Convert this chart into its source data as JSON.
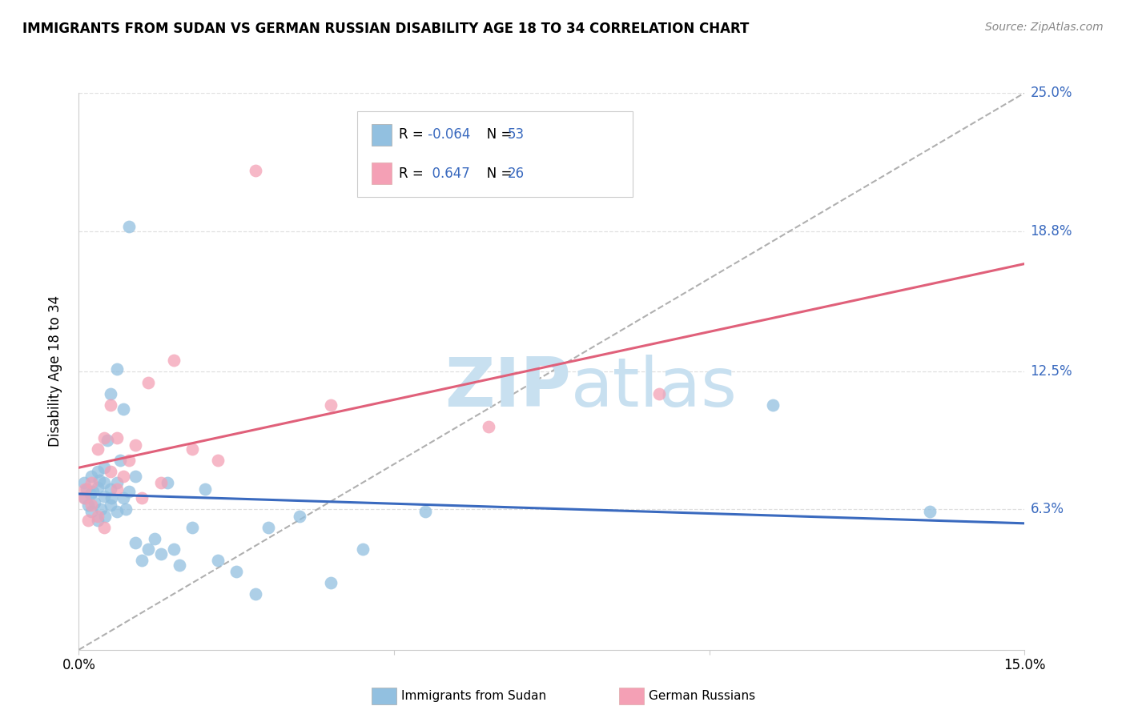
{
  "title": "IMMIGRANTS FROM SUDAN VS GERMAN RUSSIAN DISABILITY AGE 18 TO 34 CORRELATION CHART",
  "source": "Source: ZipAtlas.com",
  "ylabel": "Disability Age 18 to 34",
  "x_min": 0.0,
  "x_max": 0.15,
  "y_min": 0.0,
  "y_max": 0.25,
  "y_ticks_right": [
    0.063,
    0.125,
    0.188,
    0.25
  ],
  "y_tick_labels_right": [
    "6.3%",
    "12.5%",
    "18.8%",
    "25.0%"
  ],
  "r_sudan": -0.064,
  "n_sudan": 53,
  "r_german": 0.647,
  "n_german": 26,
  "blue_color": "#92c0e0",
  "pink_color": "#f4a0b5",
  "blue_line_color": "#3a6abf",
  "pink_line_color": "#e0607a",
  "grid_color": "#e0e0e0",
  "watermark_color": "#c8e0f0",
  "sudan_x": [
    0.0008,
    0.001,
    0.0012,
    0.0015,
    0.0018,
    0.002,
    0.002,
    0.0022,
    0.0025,
    0.003,
    0.003,
    0.003,
    0.0032,
    0.0035,
    0.004,
    0.004,
    0.004,
    0.0042,
    0.0045,
    0.005,
    0.005,
    0.005,
    0.0052,
    0.006,
    0.006,
    0.006,
    0.0065,
    0.007,
    0.007,
    0.0075,
    0.008,
    0.008,
    0.009,
    0.009,
    0.01,
    0.011,
    0.012,
    0.013,
    0.014,
    0.015,
    0.016,
    0.018,
    0.02,
    0.022,
    0.025,
    0.028,
    0.03,
    0.035,
    0.04,
    0.045,
    0.055,
    0.11,
    0.135
  ],
  "sudan_y": [
    0.075,
    0.068,
    0.072,
    0.065,
    0.07,
    0.062,
    0.078,
    0.071,
    0.066,
    0.08,
    0.073,
    0.058,
    0.076,
    0.063,
    0.069,
    0.075,
    0.082,
    0.06,
    0.094,
    0.065,
    0.115,
    0.072,
    0.068,
    0.062,
    0.126,
    0.075,
    0.085,
    0.068,
    0.108,
    0.063,
    0.071,
    0.19,
    0.078,
    0.048,
    0.04,
    0.045,
    0.05,
    0.043,
    0.075,
    0.045,
    0.038,
    0.055,
    0.072,
    0.04,
    0.035,
    0.025,
    0.055,
    0.06,
    0.03,
    0.045,
    0.062,
    0.11,
    0.062
  ],
  "german_x": [
    0.0008,
    0.001,
    0.0015,
    0.002,
    0.002,
    0.003,
    0.003,
    0.004,
    0.004,
    0.005,
    0.005,
    0.006,
    0.006,
    0.007,
    0.008,
    0.009,
    0.01,
    0.011,
    0.013,
    0.015,
    0.018,
    0.022,
    0.028,
    0.04,
    0.065,
    0.092
  ],
  "german_y": [
    0.068,
    0.072,
    0.058,
    0.065,
    0.075,
    0.06,
    0.09,
    0.055,
    0.095,
    0.08,
    0.11,
    0.072,
    0.095,
    0.078,
    0.085,
    0.092,
    0.068,
    0.12,
    0.075,
    0.13,
    0.09,
    0.085,
    0.215,
    0.11,
    0.1,
    0.115
  ]
}
